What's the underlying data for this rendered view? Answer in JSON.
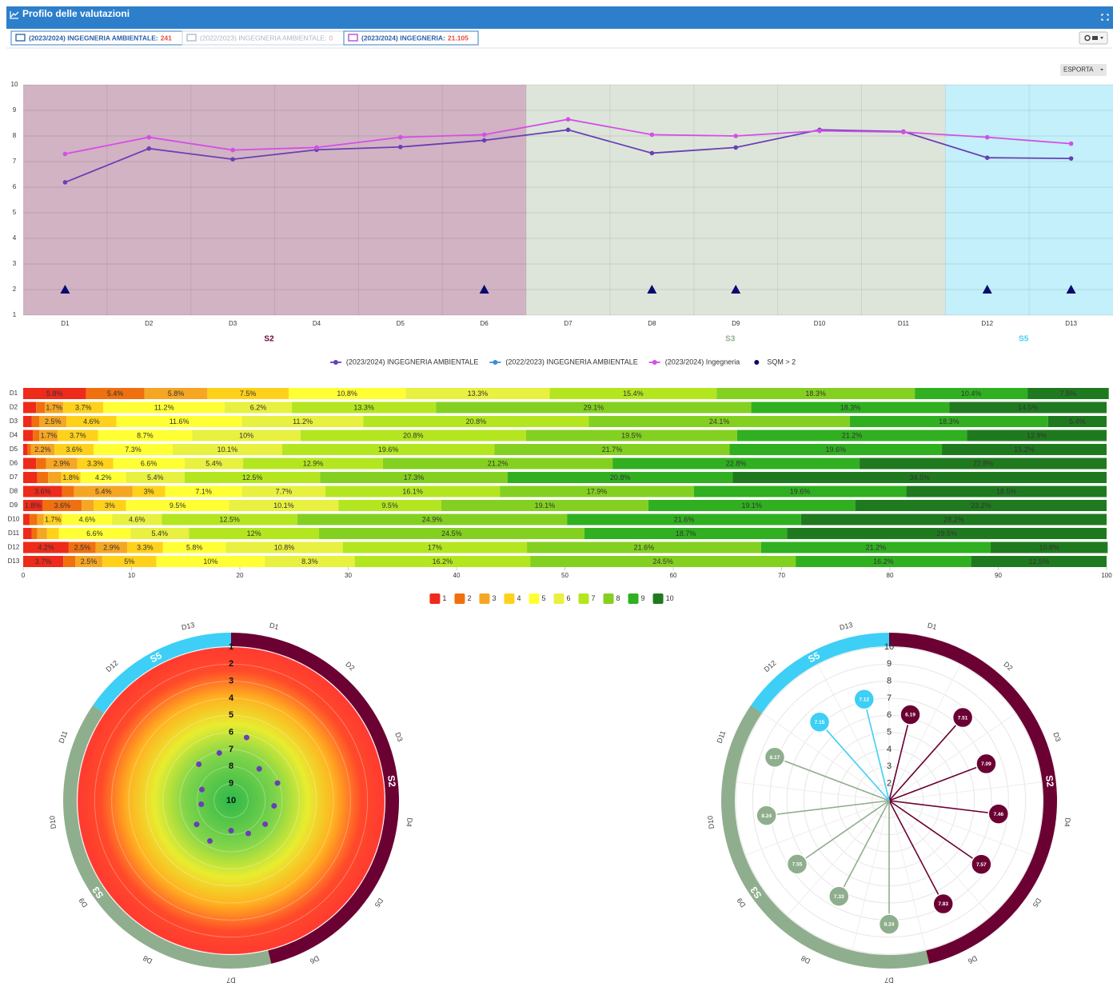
{
  "header": {
    "title": "Profilo delle valutazioni"
  },
  "tabs": [
    {
      "label": "(2023/2024) INGEGNERIA AMBIENTALE:",
      "value": "241"
    },
    {
      "label": "(2022/2023) INGEGNERIA AMBIENTALE:",
      "value": "0"
    },
    {
      "label": "(2023/2024) INGEGNERIA:",
      "value": "21.105"
    }
  ],
  "export_button": "ESPORTA",
  "chart_data": [
    {
      "type": "line",
      "categories": [
        "D1",
        "D2",
        "D3",
        "D4",
        "D5",
        "D6",
        "D7",
        "D8",
        "D9",
        "D10",
        "D11",
        "D12",
        "D13"
      ],
      "ylim": [
        1,
        10
      ],
      "yticks": [
        1,
        2,
        3,
        4,
        5,
        6,
        7,
        8,
        9,
        10
      ],
      "grid": true,
      "legend": "bottom",
      "sections": [
        {
          "name": "S2",
          "color": "#6b0033",
          "background": "#d1b3c4",
          "categories": [
            "D1",
            "D2",
            "D3",
            "D4",
            "D5",
            "D6"
          ]
        },
        {
          "name": "S3",
          "color": "#8fae8d",
          "background": "#dde5db",
          "categories": [
            "D7",
            "D8",
            "D9",
            "D10",
            "D11"
          ]
        },
        {
          "name": "S5",
          "color": "#3dcff5",
          "background": "#c3f0fa",
          "categories": [
            "D12",
            "D13"
          ]
        }
      ],
      "series": [
        {
          "name": "(2023/2024) INGEGNERIA AMBIENTALE",
          "color": "#6a3fb5",
          "values": [
            6.19,
            7.51,
            7.09,
            7.46,
            7.57,
            7.83,
            8.24,
            7.33,
            7.55,
            8.24,
            8.17,
            7.15,
            7.12
          ]
        },
        {
          "name": "(2022/2023) INGEGNERIA AMBIENTALE",
          "color": "#3b8fd9",
          "values": [
            null,
            null,
            null,
            null,
            null,
            null,
            null,
            null,
            null,
            null,
            null,
            null,
            null
          ]
        },
        {
          "name": "(2023/2024) Ingegneria",
          "color": "#d54ee6",
          "values": [
            7.3,
            7.95,
            7.45,
            7.55,
            7.95,
            8.05,
            8.65,
            8.05,
            8.0,
            8.2,
            8.15,
            7.95,
            7.7
          ]
        },
        {
          "name": "SQM > 2",
          "color": "#0b0b6e",
          "marker": "triangle",
          "values": [
            2,
            null,
            null,
            null,
            null,
            2,
            null,
            2,
            2,
            null,
            null,
            2,
            2
          ]
        }
      ]
    },
    {
      "type": "bar",
      "orientation": "horizontal",
      "stacked": true,
      "legend": "bottom",
      "categories": [
        "D1",
        "D2",
        "D3",
        "D4",
        "D5",
        "D6",
        "D7",
        "D8",
        "D9",
        "D10",
        "D11",
        "D12",
        "D13"
      ],
      "xlim": [
        0,
        100
      ],
      "xticks": [
        0,
        10,
        20,
        30,
        40,
        50,
        60,
        70,
        80,
        90,
        100
      ],
      "series": [
        {
          "name": "1",
          "color": "#ee2a1b",
          "values": [
            5.8,
            1.2,
            0.8,
            0.9,
            0.4,
            1.2,
            1.3,
            3.6,
            1.8,
            0.6,
            0.8,
            4.2,
            3.7
          ],
          "value_labels": [
            "5.8%",
            null,
            null,
            null,
            null,
            null,
            null,
            "3.6%",
            "1.8%",
            null,
            null,
            "4.2%",
            "3.7%"
          ]
        },
        {
          "name": "2",
          "color": "#f07010",
          "values": [
            5.4,
            0.8,
            0.7,
            0.6,
            0.3,
            0.9,
            1.0,
            1.1,
            3.6,
            0.7,
            0.5,
            2.5,
            1.1
          ],
          "value_labels": [
            "5.4%",
            null,
            null,
            null,
            null,
            null,
            null,
            null,
            "3.6%",
            null,
            null,
            "2.5%",
            null
          ]
        },
        {
          "name": "3",
          "color": "#f5a623",
          "values": [
            5.8,
            1.7,
            2.5,
            1.7,
            2.2,
            2.9,
            1.2,
            5.4,
            1.1,
            0.6,
            0.9,
            2.9,
            2.5
          ],
          "value_labels": [
            "5.8%",
            "1.7%",
            "2.5%",
            "1.7%",
            "2.2%",
            "2.9%",
            null,
            "5.4%",
            null,
            null,
            null,
            "2.9%",
            "2.5%"
          ]
        },
        {
          "name": "4",
          "color": "#ffd11a",
          "values": [
            7.5,
            3.7,
            4.6,
            3.7,
            3.6,
            3.3,
            1.8,
            3,
            3,
            1.7,
            1.1,
            3.3,
            5
          ],
          "value_labels": [
            "7.5%",
            "3.7%",
            "4.6%",
            "3.7%",
            "3.6%",
            "3.3%",
            "1.8%",
            "3%",
            "3%",
            "1.7%",
            null,
            "3.3%",
            "5%"
          ]
        },
        {
          "name": "5",
          "color": "#ffff33",
          "values": [
            10.8,
            11.2,
            11.6,
            8.7,
            7.3,
            6.6,
            4.2,
            7.1,
            9.5,
            4.6,
            6.6,
            5.8,
            10
          ],
          "value_labels": [
            "10.8%",
            "11.2%",
            "11.6%",
            "8.7%",
            "7.3%",
            "6.6%",
            "4.2%",
            "7.1%",
            "9.5%",
            "4.6%",
            "6.6%",
            "5.8%",
            "10%"
          ]
        },
        {
          "name": "6",
          "color": "#e8f040",
          "values": [
            13.3,
            6.2,
            11.2,
            10,
            10.1,
            5.4,
            5.4,
            7.7,
            10.1,
            4.6,
            5.4,
            10.8,
            8.3
          ],
          "value_labels": [
            "13.3%",
            "6.2%",
            "11.2%",
            "10%",
            "10.1%",
            "5.4%",
            "5.4%",
            "7.7%",
            "10.1%",
            "4.6%",
            "5.4%",
            "10.8%",
            "8.3%"
          ]
        },
        {
          "name": "7",
          "color": "#b4e620",
          "values": [
            15.4,
            13.3,
            20.8,
            20.8,
            19.6,
            12.9,
            12.5,
            16.1,
            9.5,
            12.5,
            12,
            17,
            16.2
          ],
          "value_labels": [
            "15.4%",
            "13.3%",
            "20.8%",
            "20.8%",
            "19.6%",
            "12.9%",
            "12.5%",
            "16.1%",
            "9.5%",
            "12.5%",
            "12%",
            "17%",
            "16.2%"
          ]
        },
        {
          "name": "8",
          "color": "#84d020",
          "values": [
            18.3,
            29.1,
            24.1,
            19.5,
            21.7,
            21.2,
            17.3,
            17.9,
            19.1,
            24.9,
            24.5,
            21.6,
            24.5
          ],
          "value_labels": [
            "18.3%",
            "29.1%",
            "24.1%",
            "19.5%",
            "21.7%",
            "21.2%",
            "17.3%",
            "17.9%",
            "19.1%",
            "24.9%",
            "24.5%",
            "21.6%",
            "24.5%"
          ]
        },
        {
          "name": "9",
          "color": "#30b020",
          "values": [
            10.4,
            18.3,
            18.3,
            21.2,
            19.6,
            22.8,
            20.8,
            19.6,
            19.1,
            21.6,
            18.7,
            21.2,
            16.2
          ],
          "value_labels": [
            "10.4%",
            "18.3%",
            "18.3%",
            "21.2%",
            "19.6%",
            "22.8%",
            "20.8%",
            "19.6%",
            "19.1%",
            "21.6%",
            "18.7%",
            "21.2%",
            "16.2%"
          ]
        },
        {
          "name": "10",
          "color": "#1f7a1f",
          "values": [
            7.5,
            14.5,
            5.4,
            12.9,
            15.2,
            22.8,
            34.5,
            18.5,
            23.2,
            28.2,
            29.5,
            10.8,
            12.5
          ],
          "value_labels": [
            "7.5%",
            "14.5%",
            "5.4%",
            "12.9%",
            "15.2%",
            "22.8%",
            "34.5%",
            "18.5%",
            "23.2%",
            "28.2%",
            "29.5%",
            "10.8%",
            "12.5%"
          ]
        }
      ]
    },
    {
      "type": "polar_scatter",
      "color": "#6a3fb5",
      "gradient": true,
      "categories": [
        "D1",
        "D2",
        "D3",
        "D4",
        "D5",
        "D6",
        "D7",
        "D8",
        "D9",
        "D10",
        "D11",
        "D12",
        "D13"
      ],
      "values": [
        6.19,
        7.51,
        7.09,
        7.46,
        7.57,
        7.83,
        8.24,
        7.33,
        7.55,
        8.24,
        8.17,
        7.15,
        7.12
      ],
      "rlim": [
        10,
        1
      ],
      "rticks": [
        1,
        2,
        3,
        4,
        5,
        6,
        7,
        8,
        9,
        10
      ],
      "sections": [
        {
          "name": "S2",
          "color": "#6b0033",
          "categories": [
            "D1",
            "D2",
            "D3",
            "D4",
            "D5",
            "D6"
          ]
        },
        {
          "name": "S3",
          "color": "#8fae8d",
          "categories": [
            "D7",
            "D8",
            "D9",
            "D10",
            "D11"
          ]
        },
        {
          "name": "S5",
          "color": "#3dcff5",
          "categories": [
            "D12",
            "D13"
          ]
        }
      ]
    },
    {
      "type": "polar_lollipop",
      "categories": [
        "D1",
        "D2",
        "D3",
        "D4",
        "D5",
        "D6",
        "D7",
        "D8",
        "D9",
        "D10",
        "D11",
        "D12",
        "D13"
      ],
      "values": [
        6.19,
        7.51,
        7.09,
        7.46,
        7.57,
        7.83,
        8.24,
        7.33,
        7.55,
        8.24,
        8.17,
        7.15,
        7.12
      ],
      "rlim": [
        1,
        10
      ],
      "rticks": [
        2,
        3,
        4,
        5,
        6,
        7,
        8,
        9,
        10
      ],
      "sections": [
        {
          "name": "S2",
          "color": "#6b0033",
          "categories": [
            "D1",
            "D2",
            "D3",
            "D4",
            "D5",
            "D6"
          ]
        },
        {
          "name": "S3",
          "color": "#8fae8d",
          "categories": [
            "D7",
            "D8",
            "D9",
            "D10",
            "D11"
          ]
        },
        {
          "name": "S5",
          "color": "#3dcff5",
          "categories": [
            "D12",
            "D13"
          ]
        }
      ]
    }
  ]
}
